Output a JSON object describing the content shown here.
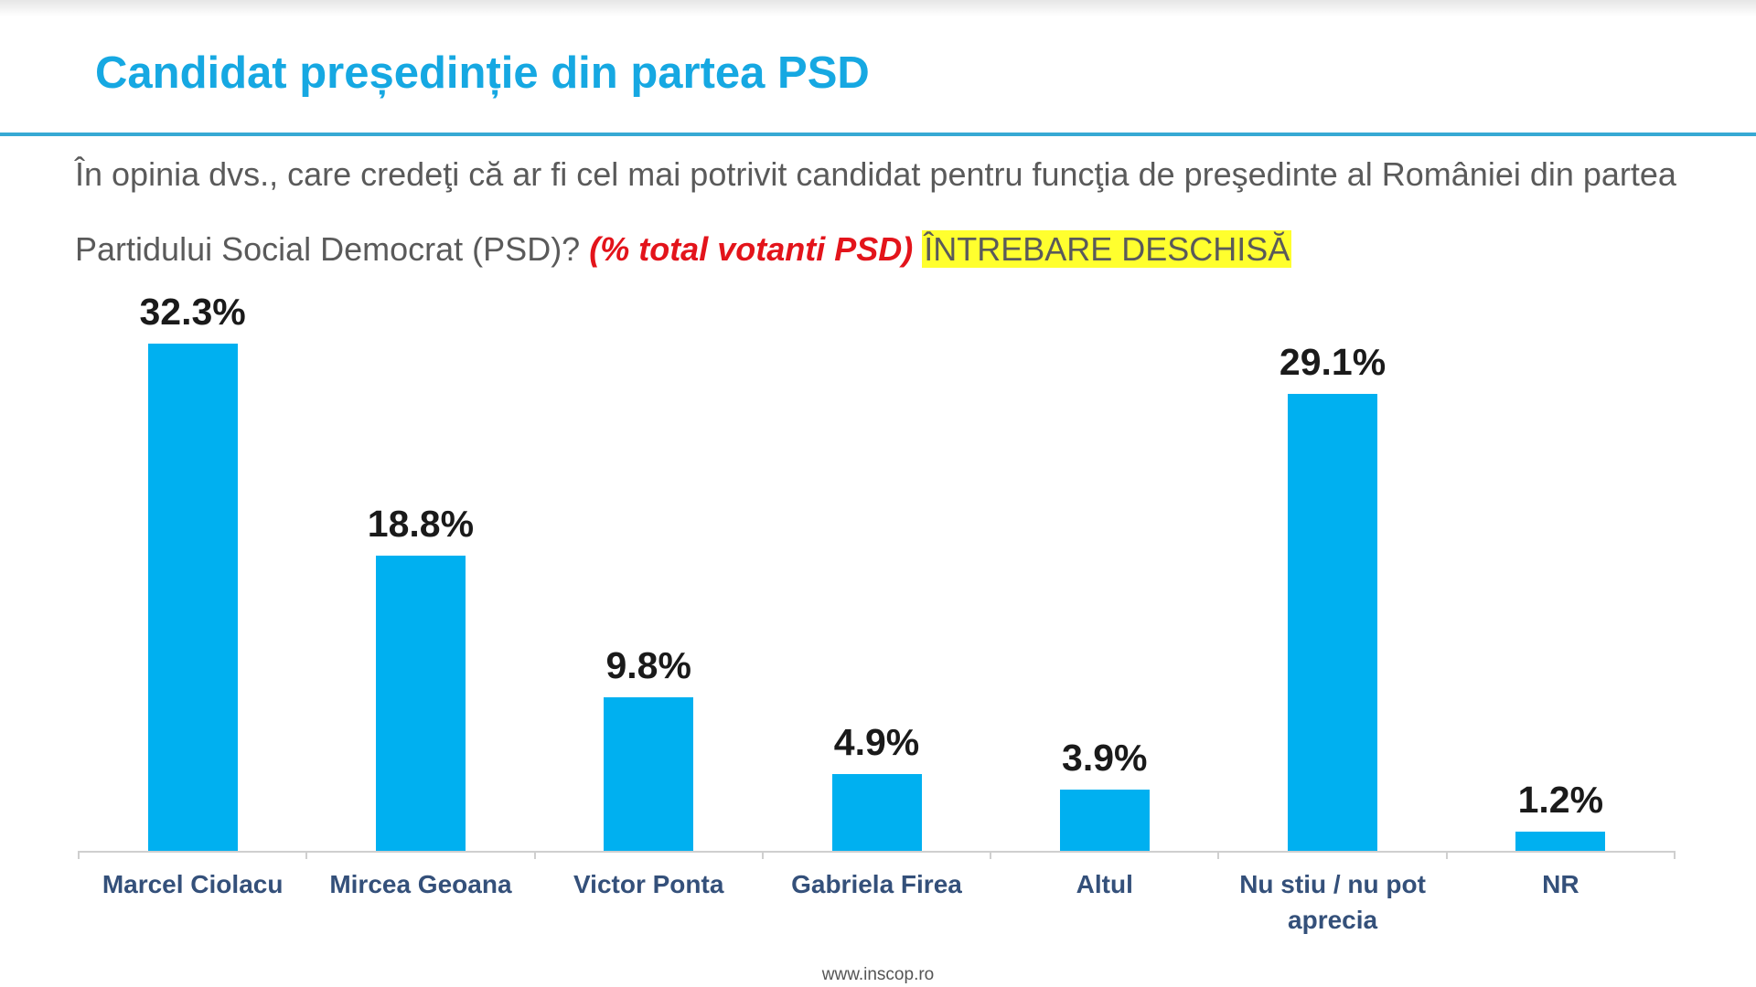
{
  "chart_data": {
    "type": "bar",
    "title": "Candidat președinție din partea PSD",
    "question": "În opinia dvs., care credeţi că ar fi cel mai potrivit candidat pentru funcţia de preşedinte al României din partea Partidului Social Democrat (PSD)?",
    "note": "(% total votanti PSD)",
    "highlight": "ÎNTREBARE DESCHISĂ",
    "categories": [
      "Marcel Ciolacu",
      "Mircea Geoana",
      "Victor Ponta",
      "Gabriela Firea",
      "Altul",
      "Nu stiu / nu pot aprecia",
      "NR"
    ],
    "values": [
      32.3,
      18.8,
      9.8,
      4.9,
      3.9,
      29.1,
      1.2
    ],
    "value_labels": [
      "32.3%",
      "18.8%",
      "9.8%",
      "4.9%",
      "3.9%",
      "29.1%",
      "1.2%"
    ],
    "color": "#00b0f0",
    "source": "www.inscop.ro"
  }
}
